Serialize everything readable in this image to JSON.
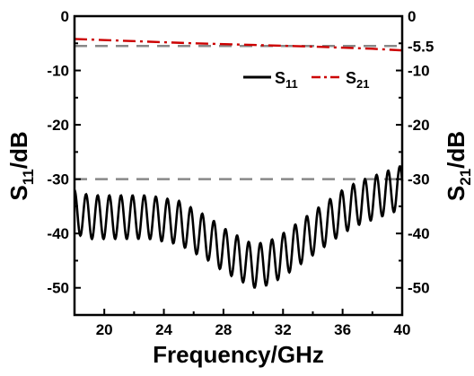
{
  "chart_data": {
    "type": "line",
    "title": "",
    "xlabel": "Frequency/GHz",
    "ylabel_left": {
      "main": "S",
      "sub": "11",
      "unit": "/dB"
    },
    "ylabel_right": {
      "main": "S",
      "sub": "21",
      "unit": "/dB"
    },
    "xlim": [
      18,
      40
    ],
    "ylim": [
      -55,
      0
    ],
    "xticks": [
      20,
      24,
      28,
      32,
      36,
      40
    ],
    "xtick_labels": [
      "20",
      "24",
      "28",
      "32",
      "36",
      "40"
    ],
    "yticks": [
      0,
      -10,
      -20,
      -30,
      -40,
      -50
    ],
    "ytick_labels": [
      "0",
      "-10",
      "-20",
      "-30",
      "-40",
      "-50"
    ],
    "right_ytick_labels": [
      "0",
      "-5.5",
      "-10",
      "-20",
      "-30",
      "-40",
      "-50"
    ],
    "right_yticks": [
      0,
      -5.5,
      -10,
      -20,
      -30,
      -40,
      -50
    ],
    "grid": false,
    "legend": "top-right",
    "reference_lines": [
      {
        "y": -5.5,
        "style": "dashed",
        "color": "#888888"
      },
      {
        "y": -30,
        "style": "dashed",
        "color": "#888888"
      }
    ],
    "series": [
      {
        "name": "S11",
        "name_main": "S",
        "name_sub": "11",
        "color": "#000000",
        "style": "solid",
        "x": [
          18,
          19,
          20,
          21,
          22,
          23,
          24,
          25,
          26,
          27,
          28,
          29,
          30,
          31,
          32,
          33,
          34,
          35,
          36,
          37,
          38,
          39,
          40
        ],
        "y": [
          -36,
          -37,
          -37,
          -37,
          -37,
          -37,
          -37.5,
          -38,
          -39.5,
          -41,
          -43,
          -44.5,
          -46,
          -45.5,
          -44,
          -42,
          -40,
          -38,
          -36,
          -34.5,
          -33.5,
          -32.5,
          -31.5
        ],
        "ripple_amplitude": 4,
        "ripple_period": 0.78
      },
      {
        "name": "S21",
        "name_main": "S",
        "name_sub": "21",
        "color": "#cc0000",
        "style": "dashdot",
        "x": [
          18,
          22,
          26,
          30,
          34,
          38,
          40
        ],
        "y": [
          -4.2,
          -4.6,
          -5.0,
          -5.3,
          -5.6,
          -6.0,
          -6.3
        ]
      }
    ]
  }
}
